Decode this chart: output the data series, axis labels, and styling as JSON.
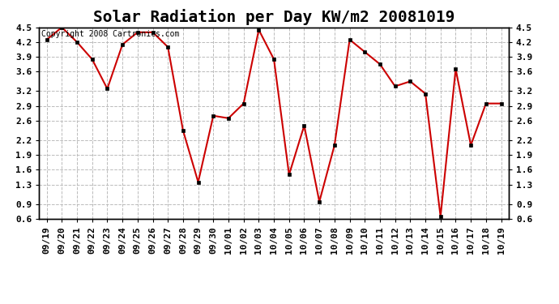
{
  "title": "Solar Radiation per Day KW/m2 20081019",
  "copyright": "Copyright 2008 Cartronics.com",
  "labels": [
    "09/19",
    "09/20",
    "09/21",
    "09/22",
    "09/23",
    "09/24",
    "09/25",
    "09/26",
    "09/27",
    "09/28",
    "09/29",
    "09/30",
    "10/01",
    "10/02",
    "10/03",
    "10/04",
    "10/05",
    "10/06",
    "10/07",
    "10/08",
    "10/09",
    "10/10",
    "10/11",
    "10/12",
    "10/13",
    "10/14",
    "10/15",
    "10/16",
    "10/17",
    "10/18",
    "10/19"
  ],
  "values": [
    4.25,
    4.5,
    4.2,
    3.85,
    3.25,
    4.15,
    4.4,
    4.4,
    4.1,
    2.4,
    1.35,
    2.7,
    2.65,
    2.95,
    4.45,
    3.85,
    1.5,
    2.5,
    0.95,
    2.1,
    4.25,
    4.0,
    3.75,
    3.3,
    3.4,
    3.15,
    0.65,
    3.65,
    2.1,
    2.95,
    2.95
  ],
  "line_color": "#cc0000",
  "marker_color": "#000000",
  "bg_color": "#ffffff",
  "grid_color": "#bbbbbb",
  "ylim_min": 0.6,
  "ylim_max": 4.5,
  "yticks": [
    0.6,
    0.9,
    1.3,
    1.6,
    1.9,
    2.2,
    2.6,
    2.9,
    3.2,
    3.6,
    3.9,
    4.2,
    4.5
  ],
  "title_fontsize": 14,
  "tick_fontsize": 8,
  "copyright_fontsize": 7
}
